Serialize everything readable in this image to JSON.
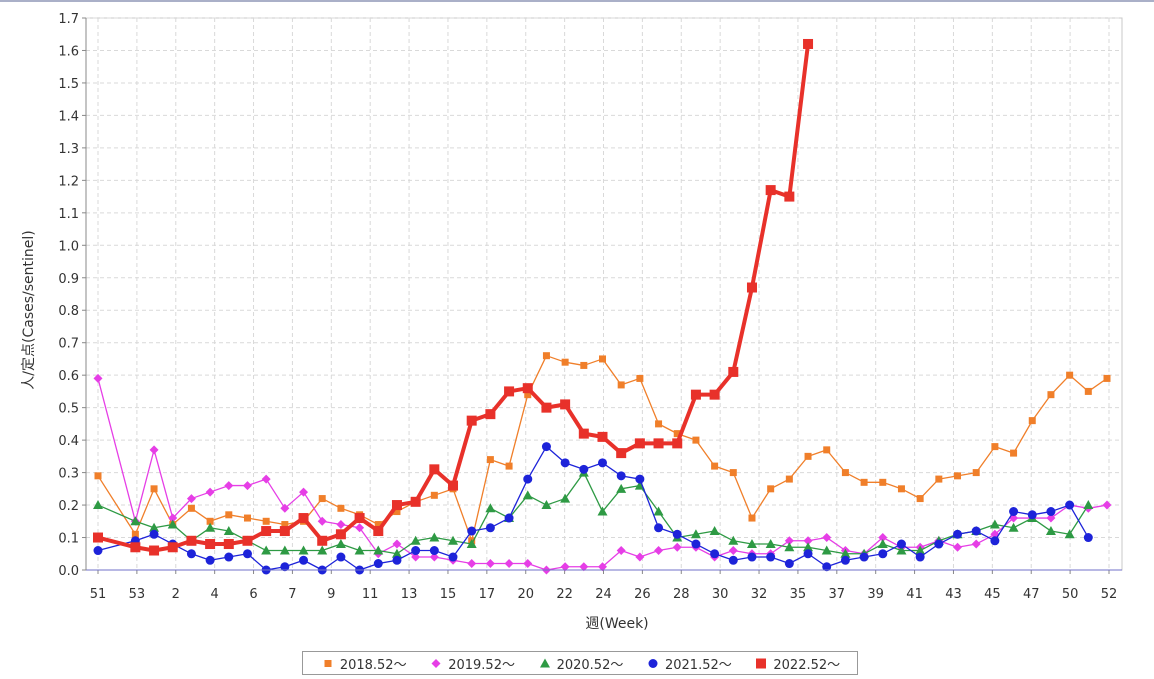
{
  "chart_data": {
    "type": "line",
    "title": "",
    "xlabel": "週(Week)",
    "ylabel": "人/定点(Cases/sentinel)",
    "ylim": [
      0,
      1.7
    ],
    "yticks": [
      "0.0",
      "0.1",
      "0.2",
      "0.3",
      "0.4",
      "0.5",
      "0.6",
      "0.7",
      "0.8",
      "0.9",
      "1.0",
      "1.1",
      "1.2",
      "1.3",
      "1.4",
      "1.5",
      "1.6",
      "1.7"
    ],
    "x_tick_labels": [
      "51",
      "53",
      "2",
      "4",
      "6",
      "7",
      "9",
      "11",
      "13",
      "15",
      "17",
      "20",
      "22",
      "24",
      "26",
      "28",
      "30",
      "32",
      "35",
      "37",
      "39",
      "41",
      "43",
      "45",
      "47",
      "50",
      "52"
    ],
    "grid": true,
    "legend_position": "bottom",
    "series": [
      {
        "name": "2018.52～",
        "color": "#f07f2a",
        "marker": "square-small",
        "values": [
          0.29,
          null,
          0.11,
          0.25,
          0.14,
          0.19,
          0.15,
          0.17,
          0.16,
          0.15,
          0.14,
          0.15,
          0.22,
          0.19,
          0.17,
          0.14,
          0.18,
          0.21,
          0.23,
          0.25,
          0.09,
          0.34,
          0.32,
          0.54,
          0.66,
          0.64,
          0.63,
          0.65,
          0.57,
          0.59,
          0.45,
          0.42,
          0.4,
          0.32,
          0.3,
          0.16,
          0.25,
          0.28,
          0.35,
          0.37,
          0.3,
          0.27,
          0.27,
          0.25,
          0.22,
          0.28,
          0.29,
          0.3,
          0.38,
          0.36,
          0.46,
          0.54,
          0.6,
          0.55,
          0.59
        ]
      },
      {
        "name": "2019.52～",
        "color": "#e63ee6",
        "marker": "diamond",
        "values": [
          0.59,
          null,
          0.15,
          0.37,
          0.16,
          0.22,
          0.24,
          0.26,
          0.26,
          0.28,
          0.19,
          0.24,
          0.15,
          0.14,
          0.13,
          0.05,
          0.08,
          0.04,
          0.04,
          0.03,
          0.02,
          0.02,
          0.02,
          0.02,
          0.0,
          0.01,
          0.01,
          0.01,
          0.06,
          0.04,
          0.06,
          0.07,
          0.07,
          0.04,
          0.06,
          0.05,
          0.05,
          0.09,
          0.09,
          0.1,
          0.06,
          0.05,
          0.1,
          0.07,
          0.07,
          0.09,
          0.07,
          0.08,
          0.11,
          0.16,
          0.16,
          0.16,
          0.2,
          0.19,
          0.2
        ]
      },
      {
        "name": "2020.52～",
        "color": "#2e9a44",
        "marker": "triangle",
        "values": [
          0.2,
          null,
          0.15,
          0.13,
          0.14,
          0.09,
          0.13,
          0.12,
          0.09,
          0.06,
          0.06,
          0.06,
          0.06,
          0.08,
          0.06,
          0.06,
          0.05,
          0.09,
          0.1,
          0.09,
          0.08,
          0.19,
          0.16,
          0.23,
          0.2,
          0.22,
          0.3,
          0.18,
          0.25,
          0.26,
          0.18,
          0.1,
          0.11,
          0.12,
          0.09,
          0.08,
          0.08,
          0.07,
          0.07,
          0.06,
          0.05,
          0.05,
          0.08,
          0.06,
          0.06,
          0.09,
          0.11,
          0.12,
          0.14,
          0.13,
          0.16,
          0.12,
          0.11,
          0.2,
          null
        ]
      },
      {
        "name": "2021.52～",
        "color": "#1d23d9",
        "marker": "circle",
        "values": [
          0.06,
          null,
          0.09,
          0.11,
          0.08,
          0.05,
          0.03,
          0.04,
          0.05,
          0.0,
          0.01,
          0.03,
          0.0,
          0.04,
          0.0,
          0.02,
          0.03,
          0.06,
          0.06,
          0.04,
          0.12,
          0.13,
          0.16,
          0.28,
          0.38,
          0.33,
          0.31,
          0.33,
          0.29,
          0.28,
          0.13,
          0.11,
          0.08,
          0.05,
          0.03,
          0.04,
          0.04,
          0.02,
          0.05,
          0.01,
          0.03,
          0.04,
          0.05,
          0.08,
          0.04,
          0.08,
          0.11,
          0.12,
          0.09,
          0.18,
          0.17,
          0.18,
          0.2,
          0.1,
          null
        ]
      },
      {
        "name": "2022.52～",
        "color": "#e8312a",
        "marker": "square",
        "values": [
          0.1,
          null,
          0.07,
          0.06,
          0.07,
          0.09,
          0.08,
          0.08,
          0.09,
          0.12,
          0.12,
          0.16,
          0.09,
          0.11,
          0.16,
          0.12,
          0.2,
          0.21,
          0.31,
          0.26,
          0.46,
          0.48,
          0.55,
          0.56,
          0.5,
          0.51,
          0.42,
          0.41,
          0.36,
          0.39,
          0.39,
          0.39,
          0.54,
          0.54,
          0.61,
          0.87,
          1.17,
          1.15,
          1.62,
          null,
          null,
          null,
          null,
          null,
          null,
          null,
          null,
          null,
          null,
          null,
          null,
          null,
          null,
          null,
          null
        ]
      }
    ]
  }
}
